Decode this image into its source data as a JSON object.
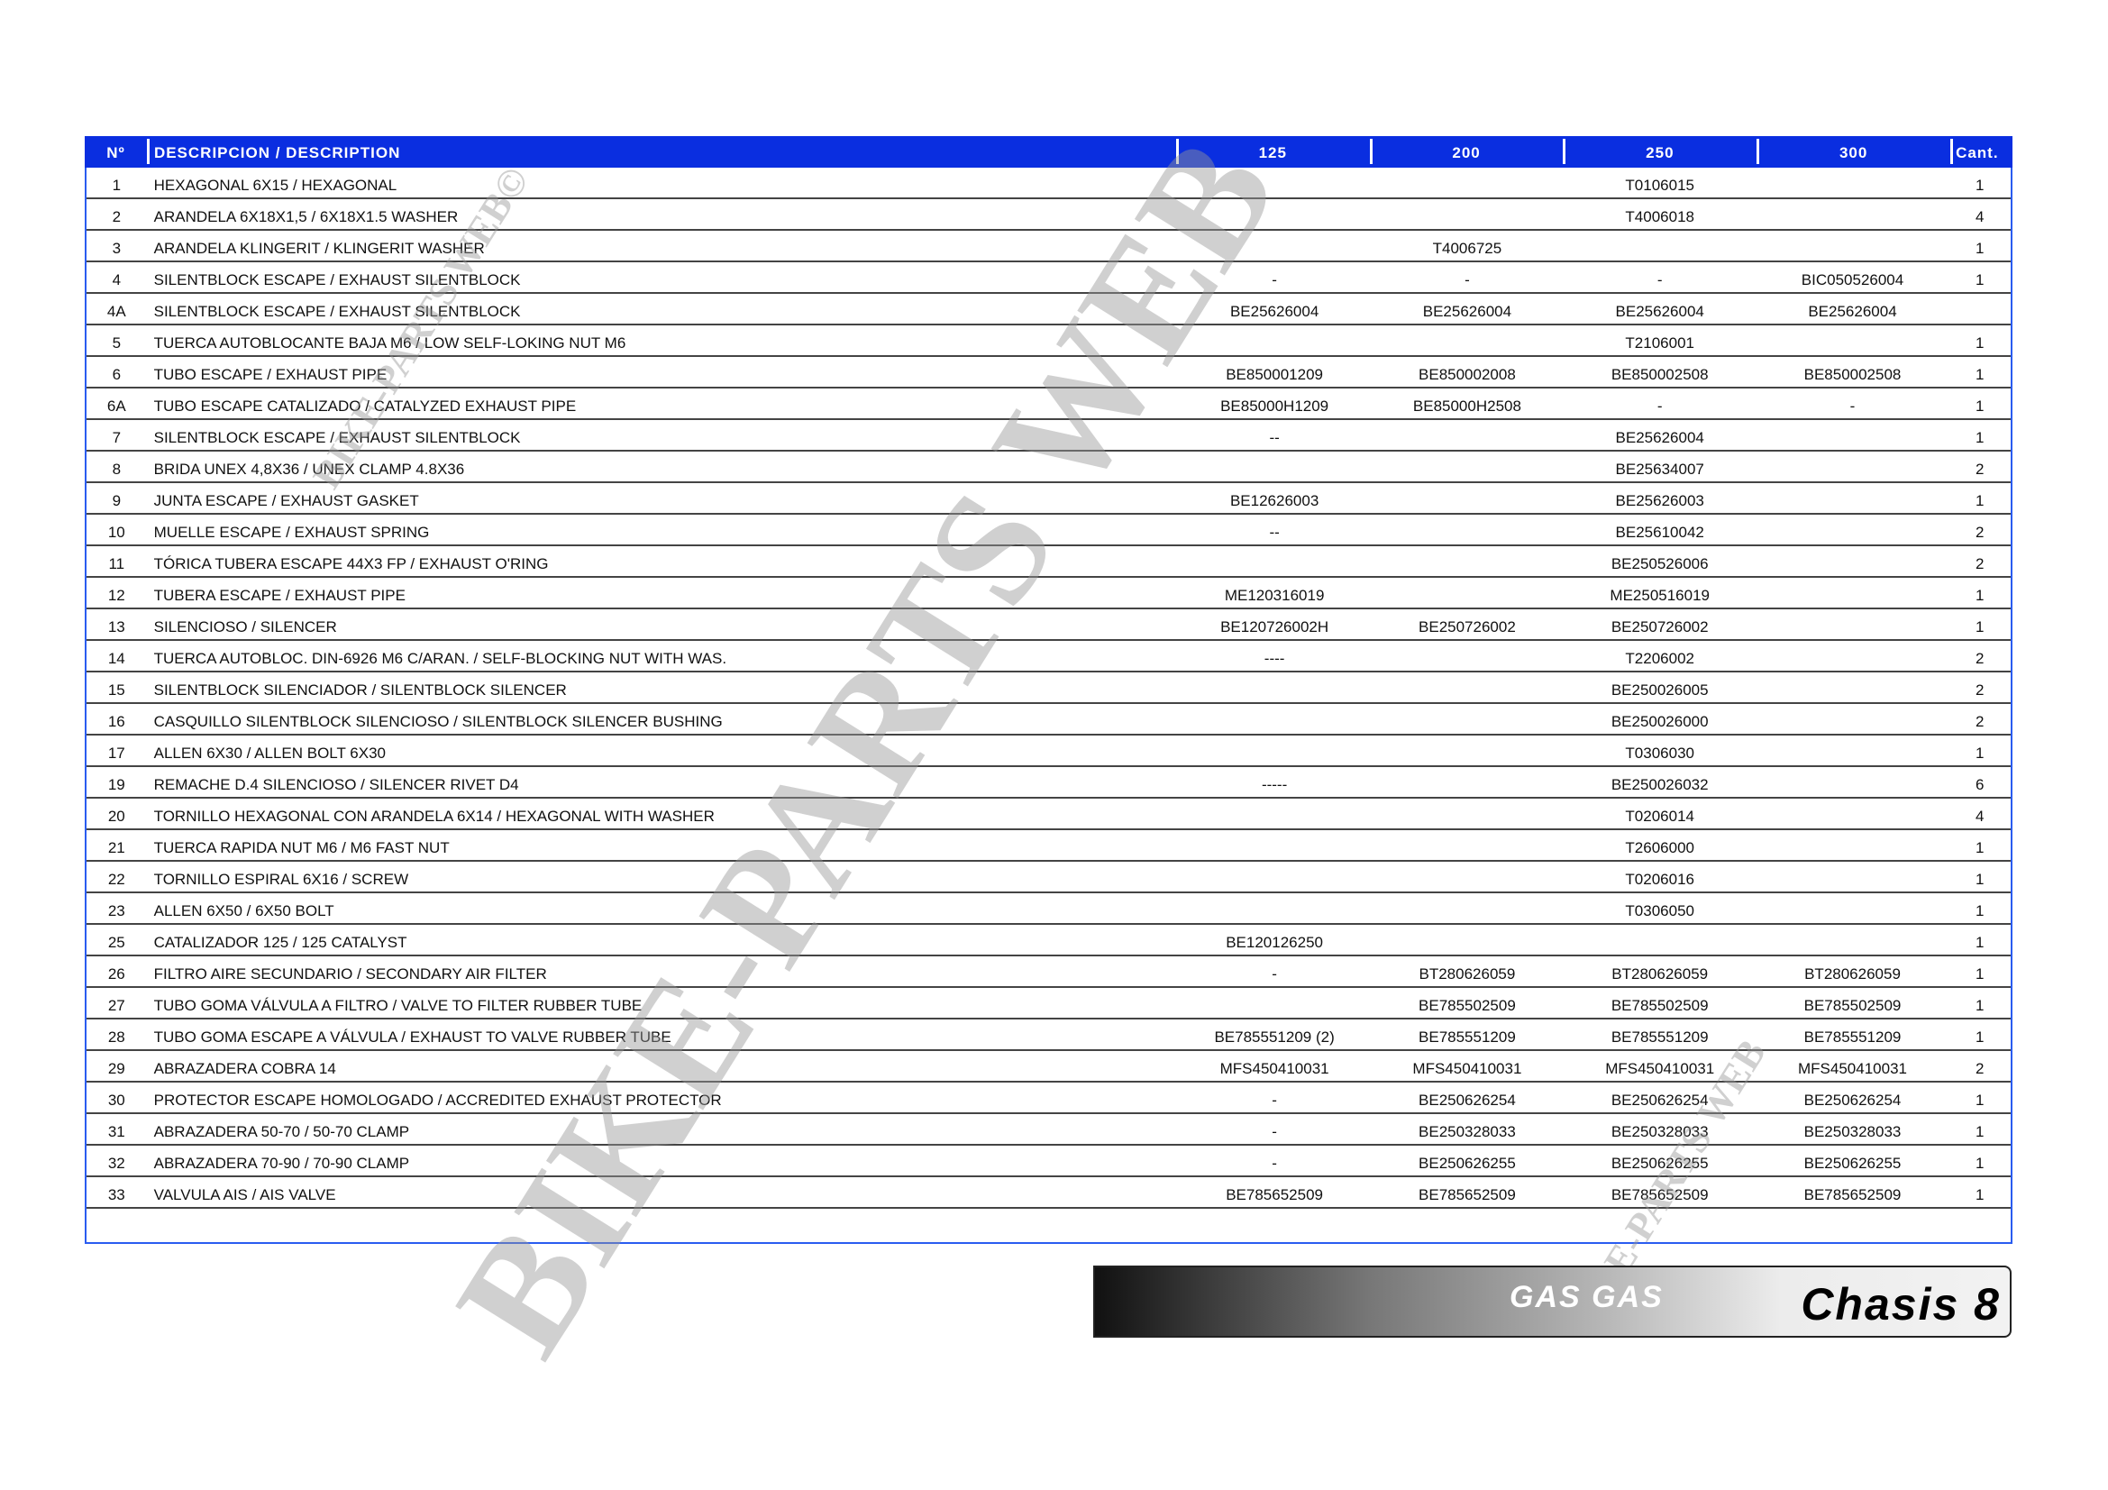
{
  "table": {
    "headers": [
      "Nº",
      "DESCRIPCION / DESCRIPTION",
      "125",
      "200",
      "250",
      "300",
      "Cant."
    ],
    "rows": [
      [
        "1",
        "HEXAGONAL 6X15 / HEXAGONAL",
        "",
        "",
        "T0106015",
        "",
        "1"
      ],
      [
        "2",
        "ARANDELA 6X18X1,5 / 6X18X1.5 WASHER",
        "",
        "",
        "T4006018",
        "",
        "4"
      ],
      [
        "3",
        "ARANDELA KLINGERIT / KLINGERIT WASHER",
        "",
        "T4006725",
        "",
        "",
        "1"
      ],
      [
        "4",
        "SILENTBLOCK ESCAPE / EXHAUST SILENTBLOCK",
        "-",
        "-",
        "-",
        "BIC050526004",
        "1"
      ],
      [
        "4A",
        "SILENTBLOCK ESCAPE / EXHAUST SILENTBLOCK",
        "BE25626004",
        "BE25626004",
        "BE25626004",
        "BE25626004",
        ""
      ],
      [
        "5",
        "TUERCA AUTOBLOCANTE BAJA M6 / LOW SELF-LOKING NUT M6",
        "",
        "",
        "T2106001",
        "",
        "1"
      ],
      [
        "6",
        "TUBO ESCAPE / EXHAUST PIPE",
        "BE850001209",
        "BE850002008",
        "BE850002508",
        "BE850002508",
        "1"
      ],
      [
        "6A",
        "TUBO ESCAPE CATALIZADO / CATALYZED EXHAUST PIPE",
        "BE85000H1209",
        "BE85000H2508",
        "-",
        "-",
        "1"
      ],
      [
        "7",
        "SILENTBLOCK ESCAPE / EXHAUST SILENTBLOCK",
        "--",
        "",
        "BE25626004",
        "",
        "1"
      ],
      [
        "8",
        "BRIDA UNEX 4,8X36 / UNEX CLAMP 4.8X36",
        "",
        "",
        "BE25634007",
        "",
        "2"
      ],
      [
        "9",
        "JUNTA ESCAPE / EXHAUST GASKET",
        "BE12626003",
        "",
        "BE25626003",
        "",
        "1"
      ],
      [
        "10",
        "MUELLE ESCAPE / EXHAUST SPRING",
        "--",
        "",
        "BE25610042",
        "",
        "2"
      ],
      [
        "11",
        "TÓRICA TUBERA ESCAPE 44X3 FP / EXHAUST O'RING",
        "",
        "",
        "BE250526006",
        "",
        "2"
      ],
      [
        "12",
        "TUBERA ESCAPE / EXHAUST PIPE",
        "ME120316019",
        "",
        "ME250516019",
        "",
        "1"
      ],
      [
        "13",
        "SILENCIOSO / SILENCER",
        "BE120726002H",
        "BE250726002",
        "BE250726002",
        "",
        "1"
      ],
      [
        "14",
        "TUERCA AUTOBLOC. DIN-6926 M6 C/ARAN. / SELF-BLOCKING NUT WITH WAS.",
        "----",
        "",
        "T2206002",
        "",
        "2"
      ],
      [
        "15",
        "SILENTBLOCK SILENCIADOR / SILENTBLOCK SILENCER",
        "",
        "",
        "BE250026005",
        "",
        "2"
      ],
      [
        "16",
        "CASQUILLO SILENTBLOCK SILENCIOSO / SILENTBLOCK SILENCER BUSHING",
        "",
        "",
        "BE250026000",
        "",
        "2"
      ],
      [
        "17",
        "ALLEN 6X30 / ALLEN BOLT 6X30",
        "",
        "",
        "T0306030",
        "",
        "1"
      ],
      [
        "19",
        "REMACHE D.4 SILENCIOSO / SILENCER RIVET D4",
        "-----",
        "",
        "BE250026032",
        "",
        "6"
      ],
      [
        "20",
        "TORNILLO HEXAGONAL CON ARANDELA 6X14 / HEXAGONAL WITH WASHER",
        "",
        "",
        "T0206014",
        "",
        "4"
      ],
      [
        "21",
        "TUERCA RAPIDA NUT M6 / M6 FAST NUT",
        "",
        "",
        "T2606000",
        "",
        "1"
      ],
      [
        "22",
        "TORNILLO ESPIRAL 6X16 / SCREW",
        "",
        "",
        "T0206016",
        "",
        "1"
      ],
      [
        "23",
        "ALLEN 6X50 / 6X50 BOLT",
        "",
        "",
        "T0306050",
        "",
        "1"
      ],
      [
        "25",
        "CATALIZADOR 125 / 125 CATALYST",
        "BE120126250",
        "",
        "",
        "",
        "1"
      ],
      [
        "26",
        "FILTRO AIRE SECUNDARIO / SECONDARY AIR FILTER",
        "-",
        "BT280626059",
        "BT280626059",
        "BT280626059",
        "1"
      ],
      [
        "27",
        "TUBO GOMA VÁLVULA A FILTRO / VALVE TO FILTER RUBBER TUBE",
        "",
        "BE785502509",
        "BE785502509",
        "BE785502509",
        "1"
      ],
      [
        "28",
        "TUBO GOMA ESCAPE A VÁLVULA / EXHAUST TO VALVE RUBBER TUBE",
        "BE785551209  (2)",
        "BE785551209",
        "BE785551209",
        "BE785551209",
        "1"
      ],
      [
        "29",
        "ABRAZADERA COBRA 14",
        "MFS450410031",
        "MFS450410031",
        "MFS450410031",
        "MFS450410031",
        "2"
      ],
      [
        "30",
        "PROTECTOR ESCAPE HOMOLOGADO / ACCREDITED EXHAUST PROTECTOR",
        "-",
        "BE250626254",
        "BE250626254",
        "BE250626254",
        "1"
      ],
      [
        "31",
        "ABRAZADERA 50-70 / 50-70 CLAMP",
        "-",
        "BE250328033",
        "BE250328033",
        "BE250328033",
        "1"
      ],
      [
        "32",
        "ABRAZADERA 70-90 / 70-90 CLAMP",
        "-",
        "BE250626255",
        "BE250626255",
        "BE250626255",
        "1"
      ],
      [
        "33",
        "VALVULA AIS / AIS VALVE",
        "BE785652509",
        "BE785652509",
        "BE785652509",
        "BE785652509",
        "1"
      ]
    ]
  },
  "footer": {
    "brand": "GAS GAS",
    "section": "Chasis 8"
  },
  "watermark": {
    "main": "BIKE-PARTS WEB",
    "small": "BIKE-PARTS WEB©"
  },
  "colors": {
    "header_bg": "#0a2ee0",
    "border": "#2a5cf0"
  }
}
